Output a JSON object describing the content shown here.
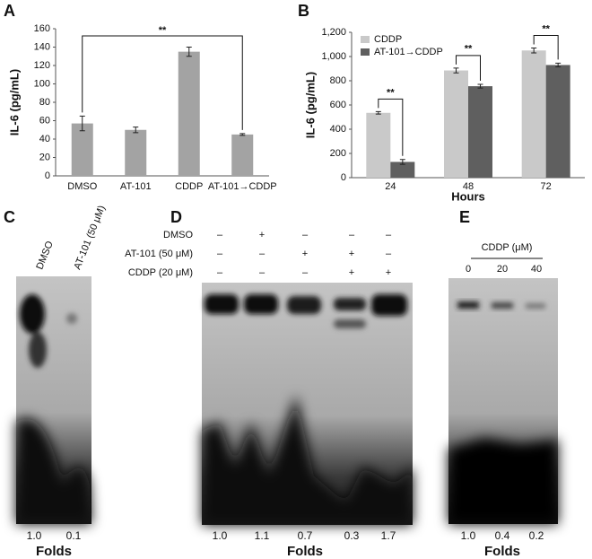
{
  "chart_data": [
    {
      "panel": "A",
      "type": "bar",
      "ylabel": "IL-6 (pg/mL)",
      "categories": [
        "DMSO",
        "AT-101",
        "CDDP",
        "AT-101→CDDP"
      ],
      "values": [
        57,
        50,
        135,
        45
      ],
      "errors": [
        8,
        3,
        5,
        1
      ],
      "color": "#a3a3a3",
      "ylim": [
        0,
        160
      ],
      "yticks": [
        0,
        20,
        40,
        60,
        80,
        100,
        120,
        140,
        160
      ],
      "annotation": "**"
    },
    {
      "panel": "B",
      "type": "grouped_bar",
      "ylabel": "IL-6 (pg/mL)",
      "xlabel": "Hours",
      "categories": [
        "24",
        "48",
        "72"
      ],
      "series": [
        {
          "name": "CDDP",
          "color": "#c9c9c9",
          "values": [
            535,
            885,
            1050
          ],
          "errors": [
            10,
            20,
            20
          ]
        },
        {
          "name": "AT-101→CDDP",
          "color": "#5f5f5f",
          "values": [
            130,
            755,
            930
          ],
          "errors": [
            20,
            15,
            15
          ]
        }
      ],
      "ylim": [
        0,
        1200
      ],
      "yticks": [
        0,
        200,
        400,
        600,
        800,
        {
          "value": 1000,
          "label": "1,000"
        },
        {
          "value": 1200,
          "label": "1,200"
        }
      ],
      "annotations": [
        "**",
        "**",
        "**"
      ],
      "legend": "upper left"
    }
  ],
  "gels": {
    "C": {
      "panel": "C",
      "lanes": [
        "DMSO",
        "AT-101 (50 μM)"
      ],
      "folds": [
        "1.0",
        "0.1"
      ],
      "folds_label": "Folds"
    },
    "D": {
      "panel": "D",
      "rows": [
        {
          "label": "DMSO",
          "signs": [
            "–",
            "+",
            "–",
            "–",
            "–"
          ]
        },
        {
          "label": "AT-101 (50 μM)",
          "signs": [
            "–",
            "–",
            "+",
            "+",
            "–"
          ]
        },
        {
          "label": "CDDP (20 μM)",
          "signs": [
            "–",
            "–",
            "–",
            "+",
            "+"
          ]
        }
      ],
      "folds": [
        "1.0",
        "1.1",
        "0.7",
        "0.3",
        "1.7"
      ],
      "folds_label": "Folds"
    },
    "E": {
      "panel": "E",
      "header": "CDDP (μM)",
      "lanes": [
        "0",
        "20",
        "40"
      ],
      "folds": [
        "1.0",
        "0.4",
        "0.2"
      ],
      "folds_label": "Folds"
    }
  }
}
